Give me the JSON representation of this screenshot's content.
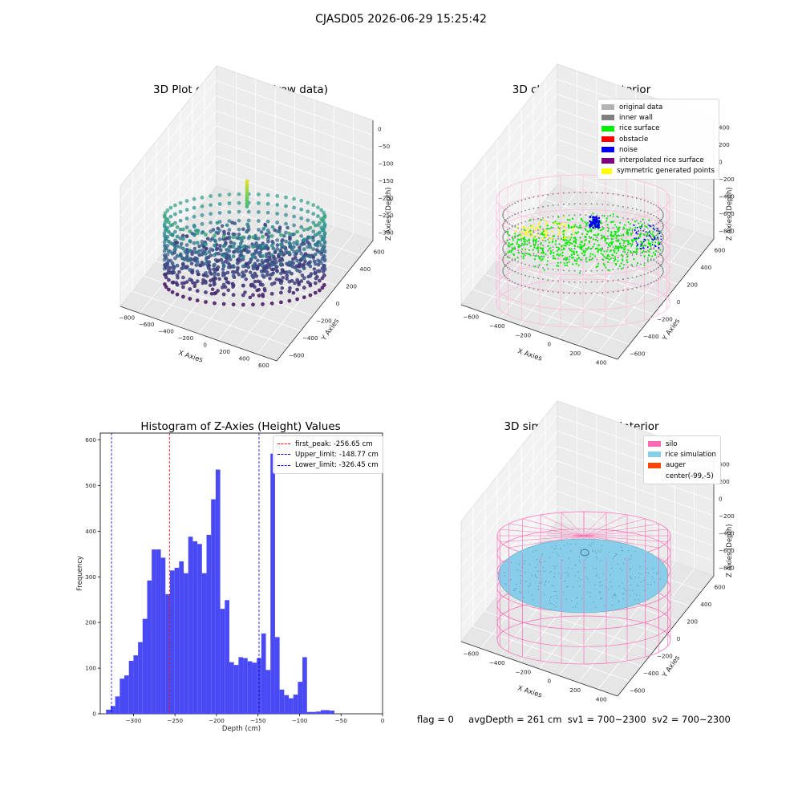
{
  "figure": {
    "suptitle": "CJASD05 2026-06-29 15:25:42",
    "footer": {
      "flag": "flag = 0",
      "avg_depth": "avgDepth = 261 cm",
      "sv1": "sv1 = 700~2300",
      "sv2": "sv2 = 700~2300"
    }
  },
  "chart_data": [
    {
      "type": "scatter",
      "projection": "3d",
      "title": "3D Plot of Silo Interior(row data)",
      "xlabel": "X Axies",
      "ylabel": "Y Axies",
      "zlabel": "Z Axies (Depth)",
      "xticks": [
        "−800",
        "−600",
        "−400",
        "−200",
        "0",
        "200",
        "400",
        "600"
      ],
      "yticks": [
        "600",
        "400",
        "200",
        "0",
        "−200",
        "−400",
        "−600"
      ],
      "zticks": [
        "0",
        "−50",
        "−100",
        "−150",
        "−200",
        "−250",
        "−300"
      ],
      "xlim": [
        -850,
        650
      ],
      "ylim": [
        -650,
        650
      ],
      "zlim": [
        -340,
        0
      ],
      "colormap": "viridis",
      "shape": "cylinder",
      "silo_center": [
        -99,
        -5
      ],
      "silo_radius": 470,
      "wall_depth_range": [
        -340,
        -100
      ],
      "rice_surface_depth_range": [
        -330,
        -100
      ],
      "peak": {
        "x": -99,
        "y": 10,
        "z": -25
      }
    },
    {
      "type": "scatter",
      "projection": "3d",
      "title": "3D classify of Silo Interior",
      "xlabel": "X Axies",
      "ylabel": "Y Axies",
      "zlabel": "Z Axies (Depth)",
      "xticks": [
        "−600",
        "−400",
        "−200",
        "0",
        "200",
        "400"
      ],
      "yticks": [
        "600",
        "400",
        "200",
        "0",
        "−200",
        "−400",
        "−600"
      ],
      "zticks": [
        "400",
        "200",
        "0",
        "−200",
        "−400",
        "−600",
        "−800"
      ],
      "xlim": [
        -700,
        500
      ],
      "ylim": [
        -650,
        650
      ],
      "zlim": [
        -900,
        450
      ],
      "legend": [
        {
          "label": "original data",
          "color": "#b3b3b3"
        },
        {
          "label": "inner wall",
          "color": "#808080"
        },
        {
          "label": "rice surface",
          "color": "#00ee00"
        },
        {
          "label": "obstacle",
          "color": "#ff0000"
        },
        {
          "label": "noise",
          "color": "#0000ee"
        },
        {
          "label": "interpolated rice surface",
          "color": "#800080"
        },
        {
          "label": "symmetric generated points",
          "color": "#ffff00"
        }
      ],
      "wire_color": "#ffb6d9"
    },
    {
      "type": "bar",
      "title": "Histogram of Z-Axies (Height) Values",
      "xlabel": "Depth (cm)",
      "ylabel": "Frequency",
      "xlim": [
        -340,
        0
      ],
      "ylim": [
        0,
        615
      ],
      "xticks": [
        -300,
        -250,
        -200,
        -150,
        -100,
        -50,
        0
      ],
      "yticks": [
        0,
        100,
        200,
        300,
        400,
        500,
        600
      ],
      "xtick_labels": [
        "−300",
        "−250",
        "−200",
        "−150",
        "−100",
        "−50",
        "0"
      ],
      "yticks_labels": [
        "0",
        "100",
        "200",
        "300",
        "400",
        "500",
        "600"
      ],
      "bar_color": "#4a4af5",
      "bin_width": 5.5,
      "bin_start": -333,
      "values": [
        9,
        17,
        38,
        77,
        84,
        116,
        128,
        157,
        208,
        292,
        360,
        360,
        342,
        262,
        314,
        320,
        334,
        308,
        388,
        378,
        372,
        308,
        392,
        470,
        535,
        230,
        249,
        113,
        107,
        124,
        122,
        115,
        112,
        122,
        176,
        96,
        570,
        168,
        53,
        41,
        34,
        42,
        70,
        124,
        4,
        4,
        5,
        8,
        8,
        7
      ],
      "reference_lines": [
        {
          "label": "first_peak: -256.65 cm",
          "x": -256.65,
          "color": "#ff0000"
        },
        {
          "label": "Upper_limit: -148.77 cm",
          "x": -148.77,
          "color": "#0000cc"
        },
        {
          "label": "Lower_limit: -326.45 cm",
          "x": -326.45,
          "color": "#0000cc"
        }
      ]
    },
    {
      "type": "scatter",
      "projection": "3d",
      "title": "3D simulation of Silo Interior",
      "xlabel": "X Axies",
      "ylabel": "Y Axies",
      "zlabel": "Z Axies (Depth)",
      "xticks": [
        "−600",
        "−400",
        "−200",
        "0",
        "200",
        "400"
      ],
      "yticks": [
        "600",
        "400",
        "200",
        "0",
        "−200",
        "−400",
        "−600"
      ],
      "zticks": [
        "400",
        "200",
        "0",
        "−200",
        "−400",
        "−600",
        "−800"
      ],
      "xlim": [
        -700,
        500
      ],
      "ylim": [
        -650,
        650
      ],
      "zlim": [
        -900,
        450
      ],
      "legend": [
        {
          "label": "silo",
          "color": "#ff69b4"
        },
        {
          "label": "rice simulation",
          "color": "#87ceeb"
        },
        {
          "label": "auger",
          "color": "#ff4500"
        },
        {
          "label": "center(-99,-5)",
          "color": ""
        }
      ]
    }
  ]
}
